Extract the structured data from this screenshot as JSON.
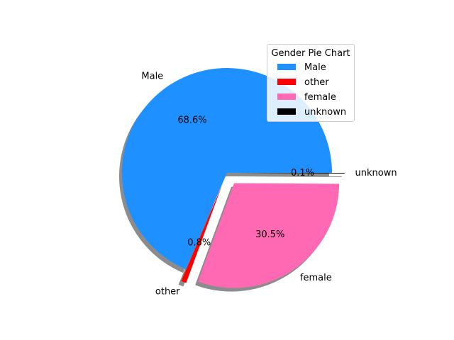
{
  "chart_data": {
    "type": "pie",
    "title": "",
    "legend": {
      "title": "Gender Pie Chart",
      "placement": "upper-right"
    },
    "slices": [
      {
        "label": "Male",
        "value": 68.6,
        "pct_label": "68.6%",
        "color": "#1e90ff",
        "exploded": false
      },
      {
        "label": "other",
        "value": 0.8,
        "pct_label": "0.8%",
        "color": "#ff0000",
        "exploded": true
      },
      {
        "label": "female",
        "value": 30.5,
        "pct_label": "30.5%",
        "color": "#ff69b4",
        "exploded": true
      },
      {
        "label": "unknown",
        "value": 0.1,
        "pct_label": "0.1%",
        "color": "#000000",
        "exploded": true
      }
    ],
    "start_angle_deg": 0,
    "direction": "counterclockwise",
    "shadow": true
  }
}
